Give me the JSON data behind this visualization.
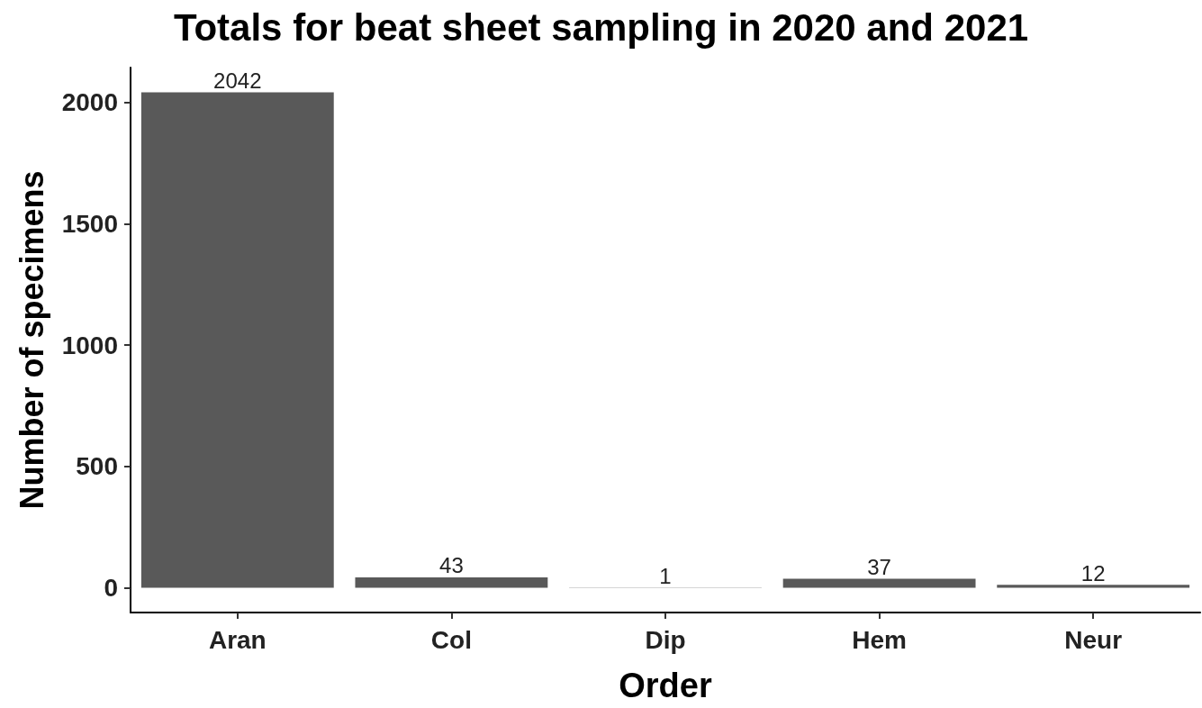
{
  "chart_data": {
    "type": "bar",
    "title": "Totals for beat sheet sampling in 2020 and 2021",
    "xlabel": "Order",
    "ylabel": "Number of specimens",
    "categories": [
      "Aran",
      "Col",
      "Dip",
      "Hem",
      "Neur"
    ],
    "values": [
      2042,
      43,
      1,
      37,
      12
    ],
    "color": "#595959",
    "ylim": [
      -102,
      2144
    ],
    "yticks": [
      0,
      500,
      1000,
      1500,
      2000
    ],
    "grid": false,
    "data_labels": true
  }
}
